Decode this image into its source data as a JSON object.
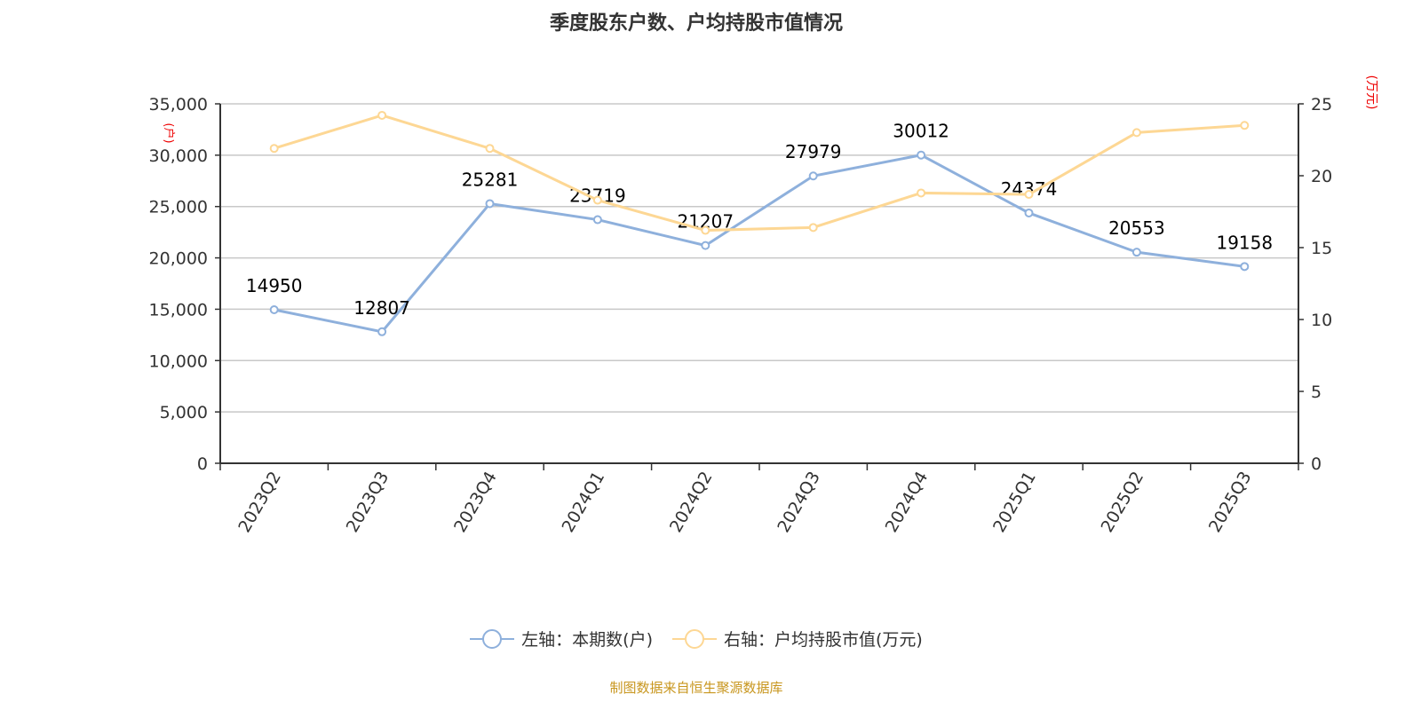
{
  "chart_data": {
    "type": "line",
    "title": "季度股东户数、户均持股市值情况",
    "categories": [
      "2023Q2",
      "2023Q3",
      "2023Q4",
      "2024Q1",
      "2024Q2",
      "2024Q3",
      "2024Q4",
      "2025Q1",
      "2025Q2",
      "2025Q3"
    ],
    "y_left": {
      "label": "(户)",
      "range": [
        0,
        35000
      ],
      "ticks": [
        "0",
        "5,000",
        "10,000",
        "15,000",
        "20,000",
        "25,000",
        "30,000",
        "35,000"
      ]
    },
    "y_right": {
      "label": "(万元)",
      "range": [
        0,
        25
      ],
      "ticks": [
        "0",
        "5",
        "10",
        "15",
        "20",
        "25"
      ]
    },
    "series": [
      {
        "name": "左轴：本期数(户)",
        "axis": "left",
        "color": "#8eb0dc",
        "values": [
          14950,
          12807,
          25281,
          23719,
          21207,
          27979,
          30012,
          24374,
          20553,
          19158
        ],
        "labels": [
          "14950",
          "12807",
          "25281",
          "23719",
          "21207",
          "27979",
          "30012",
          "24374",
          "20553",
          "19158"
        ]
      },
      {
        "name": "右轴：户均持股市值(万元)",
        "axis": "right",
        "color": "#fdd794",
        "values": [
          21.9,
          24.2,
          21.9,
          18.3,
          16.2,
          16.4,
          18.8,
          18.7,
          23.0,
          23.5
        ]
      }
    ],
    "grid": true,
    "legend_position": "bottom"
  },
  "source": "制图数据来自恒生聚源数据库"
}
